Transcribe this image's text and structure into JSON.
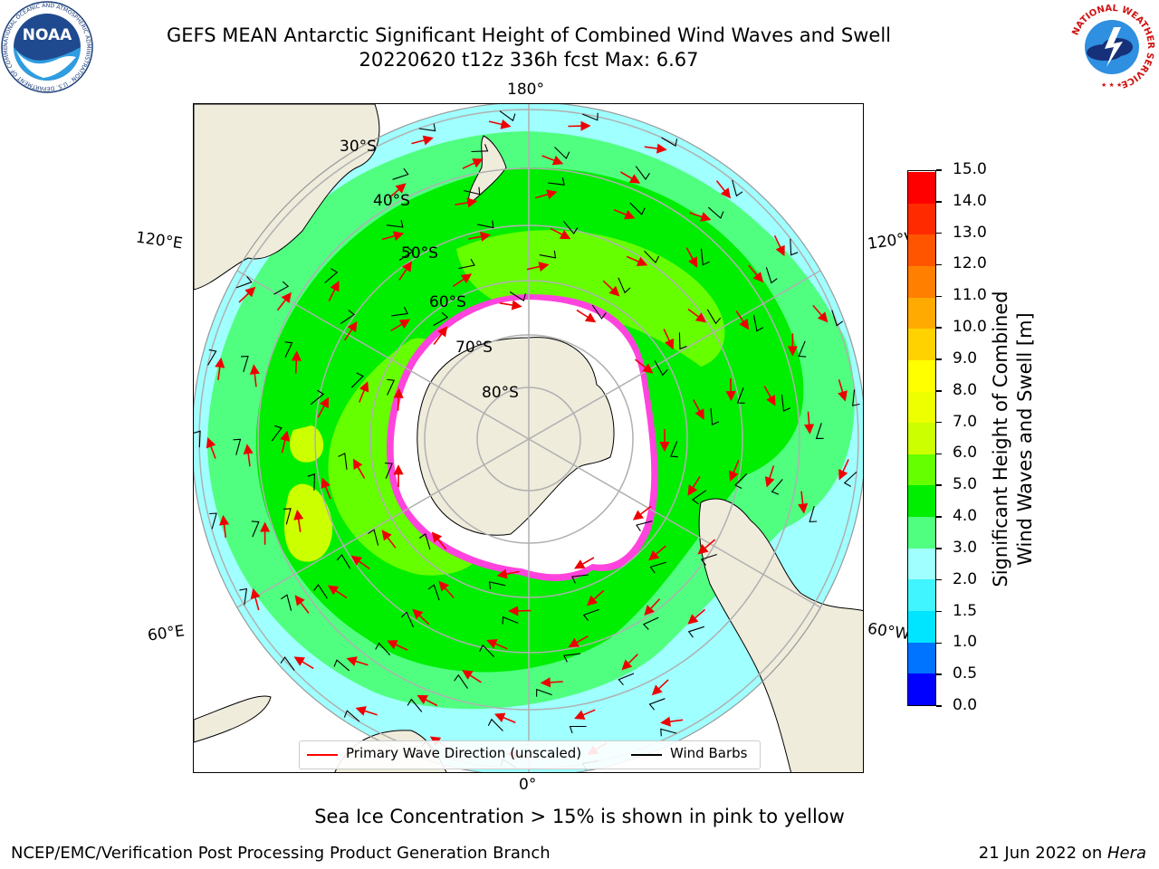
{
  "title": {
    "line1": "GEFS MEAN Antarctic Significant Height of Combined Wind Waves and Swell",
    "line2": "20220620 t12z 336h fcst   Max: 6.67"
  },
  "logos": {
    "noaa": {
      "text": "NOAA",
      "ring_text": "NATIONAL OCEANIC AND ATMOSPHERIC ADMINISTRATION · U.S. DEPARTMENT OF COMMERCE"
    },
    "nws": {
      "ring_text": "NATIONAL WEATHER SERVICE"
    }
  },
  "map": {
    "projection": "south-polar-stereographic",
    "longitude_labels": {
      "top": "180°",
      "bottom": "0°",
      "upper_left": "120°E",
      "upper_right": "120°W",
      "lower_left": "60°E",
      "lower_right": "60°W"
    },
    "latitude_labels": [
      "30°S",
      "40°S",
      "50°S",
      "60°S",
      "70°S",
      "80°S"
    ],
    "colors": {
      "land": "#efecdc",
      "ice": "#ffffff",
      "grid": "#b0b0b0",
      "arrow": "#ee0000",
      "barb": "#000000"
    }
  },
  "colorbar": {
    "title_line1": "Significant Height of Combined",
    "title_line2": "Wind Waves and Swell [m]",
    "ticks": [
      "0.0",
      "0.5",
      "1.0",
      "1.5",
      "2.0",
      "3.0",
      "4.0",
      "5.0",
      "6.0",
      "7.0",
      "8.0",
      "9.0",
      "10.0",
      "11.0",
      "12.0",
      "13.0",
      "14.0",
      "15.0"
    ],
    "colors": [
      "#0000ff",
      "#0073ff",
      "#00e5ff",
      "#40f5ff",
      "#a0ffff",
      "#50ff80",
      "#00ee00",
      "#66ff00",
      "#ccff00",
      "#eeff00",
      "#ffff00",
      "#ffd200",
      "#ffaa00",
      "#ff8000",
      "#ff5500",
      "#ff2a00",
      "#ff0000"
    ]
  },
  "legend": {
    "primary_wave": {
      "label": "Primary Wave Direction (unscaled)",
      "color": "#ff0000"
    },
    "wind_barbs": {
      "label": "Wind Barbs",
      "color": "#000000"
    }
  },
  "notes": {
    "sea_ice": "Sea Ice Concentration > 15% is shown in pink to yellow"
  },
  "footer": {
    "left": "NCEP/EMC/Verification Post Processing Product Generation Branch",
    "right_prefix": "21 Jun 2022 on ",
    "right_host": "Hera"
  }
}
